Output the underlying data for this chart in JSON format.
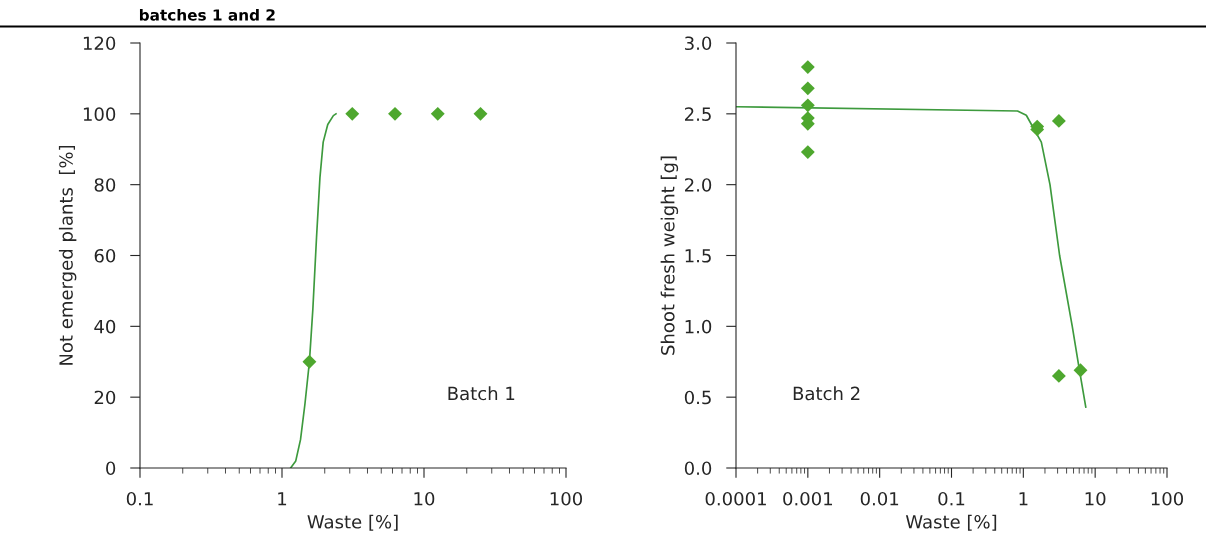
{
  "chart_data": [
    {
      "type": "scatter",
      "annotations": [
        "batches 1 and 2",
        "Batch 1"
      ],
      "xlabel": "Waste [%]",
      "ylabel": "Not emerged plants  [%]",
      "log": "x",
      "xlim": [
        0.1,
        100
      ],
      "xticks": [
        0.1,
        1,
        10,
        100
      ],
      "ylim": [
        0,
        120
      ],
      "yticks": [
        0,
        20,
        40,
        60,
        80,
        100,
        120
      ],
      "grid": false,
      "marker": "diamond",
      "series": [
        {
          "type": "line",
          "marker": "none",
          "color": "#3d9a3d",
          "x": [
            1.15,
            1.25,
            1.35,
            1.45,
            1.56,
            1.65,
            1.75,
            1.85,
            1.95,
            2.1,
            2.3,
            2.4
          ],
          "values": [
            0,
            2,
            8,
            18,
            30,
            45,
            65,
            82,
            92,
            97,
            99.5,
            100
          ]
        },
        {
          "color": "#4ea72e",
          "x": [
            1.56,
            3.125,
            6.25,
            12.5,
            25
          ],
          "values": [
            30,
            100,
            100,
            100,
            100
          ]
        }
      ]
    },
    {
      "type": "scatter",
      "annotations": [
        "Batch 2"
      ],
      "xlabel": "Waste [%]",
      "ylabel": "Shoot fresh weight [g]",
      "log": "x",
      "xlim": [
        0.0001,
        100
      ],
      "xticks": [
        0.0001,
        0.001,
        0.01,
        0.1,
        1,
        10,
        100
      ],
      "ylim": [
        0,
        3
      ],
      "yticks": [
        {
          "value": 0,
          "label": "0.0"
        },
        {
          "value": 0.5,
          "label": "0.5"
        },
        {
          "value": 1,
          "label": "1.0"
        },
        {
          "value": 1.5,
          "label": "1.5"
        },
        {
          "value": 2,
          "label": "2.0"
        },
        {
          "value": 2.5,
          "label": "2.5"
        },
        {
          "value": 3,
          "label": "3.0"
        }
      ],
      "grid": false,
      "marker": "diamond",
      "series": [
        {
          "type": "line",
          "marker": "none",
          "color": "#3d9a3d",
          "x": [
            0.0001,
            0.83,
            1.1,
            1.38,
            1.78,
            2.35,
            3.2,
            4.8,
            6.0,
            7.4
          ],
          "values": [
            2.55,
            2.52,
            2.49,
            2.4,
            2.3,
            2.0,
            1.5,
            1.0,
            0.7,
            0.43
          ]
        },
        {
          "color": "#4ea72e",
          "x": [
            0.001,
            0.001,
            0.001,
            0.001,
            0.001,
            0.001,
            1.56,
            1.56,
            3.125,
            3.125,
            6.25
          ],
          "values": [
            2.83,
            2.68,
            2.56,
            2.47,
            2.43,
            2.23,
            2.41,
            2.39,
            2.45,
            0.65,
            0.69
          ]
        }
      ]
    }
  ]
}
